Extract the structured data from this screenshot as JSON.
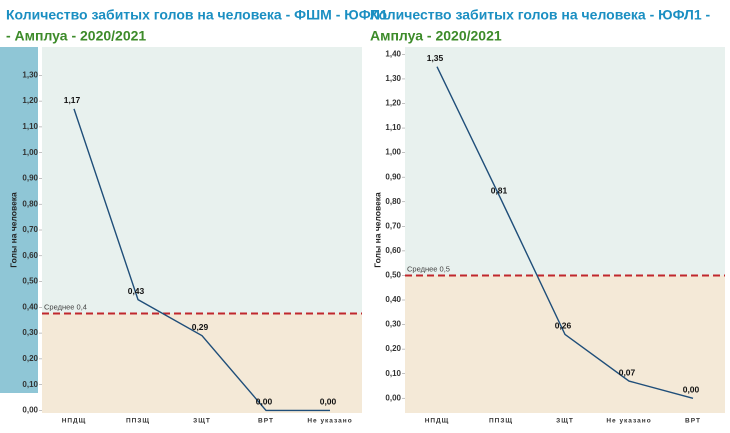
{
  "chart_data": [
    {
      "type": "line",
      "title": "Количество забитых голов на человека - ФШМ - ЮФЛ1",
      "title_suffix": "- Амплуа - 2020/2021",
      "ylabel": "Голы на человека",
      "categories": [
        "НПДЩ",
        "ППЗЩ",
        "ЗЩТ",
        "ВРТ",
        "Не указано"
      ],
      "values": [
        1.17,
        0.43,
        0.29,
        0.0,
        0.0
      ],
      "value_labels": [
        "1,17",
        "0,43",
        "0,29",
        "0,00",
        "0,00"
      ],
      "color": "#1f4e79",
      "ylim": [
        -0.01,
        1.41
      ],
      "yticks": [
        {
          "value": 0,
          "label": "0,00"
        },
        {
          "value": 0.1,
          "label": "0,10"
        },
        {
          "value": 0.2,
          "label": "0,20"
        },
        {
          "value": 0.3,
          "label": "0,30"
        },
        {
          "value": 0.4,
          "label": "0,40"
        },
        {
          "value": 0.5,
          "label": "0,50"
        },
        {
          "value": 0.6,
          "label": "0,60"
        },
        {
          "value": 0.7,
          "label": "0,70"
        },
        {
          "value": 0.8,
          "label": "0,80"
        },
        {
          "value": 0.9,
          "label": "0,90"
        },
        {
          "value": 1.0,
          "label": "1,00"
        },
        {
          "value": 1.1,
          "label": "1,10"
        },
        {
          "value": 1.2,
          "label": "1,20"
        },
        {
          "value": 1.3,
          "label": "1,30"
        }
      ],
      "reference": {
        "value": 0.376,
        "label": "Среднее 0,4",
        "color": "#c0282d"
      },
      "band_colors": [
        "#e8f1ee",
        "#f4e9d7"
      ],
      "axis_panel_color": "#8fc6d6"
    },
    {
      "type": "line",
      "title": "Количество забитых голов на человека - ЮФЛ1 -",
      "title_suffix": "Амплуа - 2020/2021",
      "ylabel": "Голы на человека",
      "categories": [
        "НПДЩ",
        "ППЗЩ",
        "ЗЩТ",
        "Не указано",
        "ВРТ"
      ],
      "values": [
        1.35,
        0.81,
        0.26,
        0.07,
        0.0
      ],
      "value_labels": [
        "1,35",
        "0,81",
        "0,26",
        "0,07",
        "0,00"
      ],
      "color": "#1f4e79",
      "ylim": [
        -0.06,
        1.43
      ],
      "yticks": [
        {
          "value": 0,
          "label": "0,00"
        },
        {
          "value": 0.1,
          "label": "0,10"
        },
        {
          "value": 0.2,
          "label": "0,20"
        },
        {
          "value": 0.3,
          "label": "0,30"
        },
        {
          "value": 0.4,
          "label": "0,40"
        },
        {
          "value": 0.5,
          "label": "0,50"
        },
        {
          "value": 0.6,
          "label": "0,60"
        },
        {
          "value": 0.7,
          "label": "0,70"
        },
        {
          "value": 0.8,
          "label": "0,80"
        },
        {
          "value": 0.9,
          "label": "0,90"
        },
        {
          "value": 1.0,
          "label": "1,00"
        },
        {
          "value": 1.1,
          "label": "1,10"
        },
        {
          "value": 1.2,
          "label": "1,20"
        },
        {
          "value": 1.3,
          "label": "1,30"
        },
        {
          "value": 1.4,
          "label": "1,40"
        }
      ],
      "reference": {
        "value": 0.5,
        "label": "Среднее 0,5",
        "color": "#c0282d"
      },
      "band_colors": [
        "#e8f1ee",
        "#f4e9d7"
      ]
    }
  ]
}
